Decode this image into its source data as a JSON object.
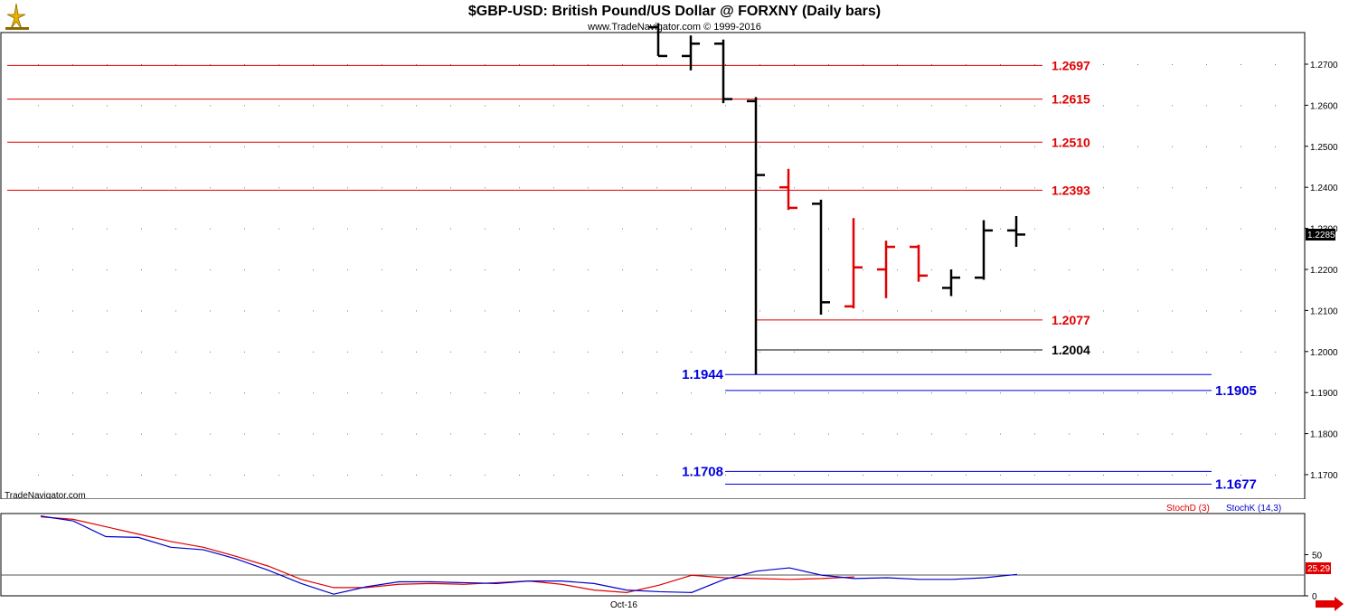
{
  "chart_data": {
    "type": "ohlc",
    "title": "$GBP-USD:  British Pound/US Dollar @ FORXNY  (Daily bars)",
    "subtitle": "www.TradeNavigator.com © 1999-2016",
    "watermark": "TradeNavigator.com",
    "ylim": [
      1.162,
      1.281
    ],
    "y_ticks": [
      "1.2700",
      "1.2600",
      "1.2500",
      "1.2400",
      "1.2300",
      "1.2200",
      "1.2100",
      "1.2000",
      "1.1900",
      "1.1800",
      "1.1700"
    ],
    "last_price": "1.2285",
    "x_tick_label": "Oct-16",
    "bars": [
      {
        "o": 1.279,
        "h": 1.28,
        "l": 1.272,
        "c": 1.272,
        "color": "#000000"
      },
      {
        "o": 1.272,
        "h": 1.277,
        "l": 1.2685,
        "c": 1.275,
        "color": "#000000"
      },
      {
        "o": 1.275,
        "h": 1.276,
        "l": 1.2605,
        "c": 1.2615,
        "color": "#000000"
      },
      {
        "o": 1.261,
        "h": 1.262,
        "l": 1.1944,
        "c": 1.243,
        "color": "#000000"
      },
      {
        "o": 1.24,
        "h": 1.2445,
        "l": 1.2345,
        "c": 1.235,
        "color": "#e00000"
      },
      {
        "o": 1.236,
        "h": 1.237,
        "l": 1.209,
        "c": 1.212,
        "color": "#000000"
      },
      {
        "o": 1.211,
        "h": 1.2325,
        "l": 1.2105,
        "c": 1.2205,
        "color": "#e00000"
      },
      {
        "o": 1.22,
        "h": 1.227,
        "l": 1.213,
        "c": 1.2255,
        "color": "#e00000"
      },
      {
        "o": 1.2255,
        "h": 1.226,
        "l": 1.217,
        "c": 1.2185,
        "color": "#e00000"
      },
      {
        "o": 1.2155,
        "h": 1.22,
        "l": 1.2135,
        "c": 1.218,
        "color": "#000000"
      },
      {
        "o": 1.218,
        "h": 1.232,
        "l": 1.2175,
        "c": 1.2295,
        "color": "#000000"
      },
      {
        "o": 1.2295,
        "h": 1.233,
        "l": 1.2255,
        "c": 1.2285,
        "color": "#000000"
      }
    ],
    "levels": [
      {
        "value": 1.2697,
        "label": "1.2697",
        "color": "#e00000",
        "side": "right"
      },
      {
        "value": 1.2615,
        "label": "1.2615",
        "color": "#e00000",
        "side": "right"
      },
      {
        "value": 1.251,
        "label": "1.2510",
        "color": "#e00000",
        "side": "right"
      },
      {
        "value": 1.2393,
        "label": "1.2393",
        "color": "#e00000",
        "side": "right"
      },
      {
        "value": 1.2077,
        "label": "1.2077",
        "color": "#e00000",
        "side": "right"
      },
      {
        "value": 1.2004,
        "label": "1.2004",
        "color": "#000000",
        "side": "right"
      },
      {
        "value": 1.1944,
        "label": "1.1944",
        "color": "#0000dd",
        "side": "left"
      },
      {
        "value": 1.1905,
        "label": "1.1905",
        "color": "#0000dd",
        "side": "right"
      },
      {
        "value": 1.1708,
        "label": "1.1708",
        "color": "#0000dd",
        "side": "left"
      },
      {
        "value": 1.1677,
        "label": "1.1677",
        "color": "#0000dd",
        "side": "right"
      }
    ],
    "stochastic": {
      "ylim": [
        0,
        100
      ],
      "y_ticks": [
        "50",
        "0"
      ],
      "ref_line": 25.29,
      "last_value": "25.29",
      "series": [
        {
          "name": "StochD (3)",
          "color": "#e00000",
          "values": [
            96,
            93,
            84,
            75,
            66,
            59,
            48,
            36,
            20,
            10,
            10,
            14,
            15,
            14,
            16,
            18,
            14,
            7,
            4,
            13,
            25,
            22,
            21,
            20,
            21,
            23
          ]
        },
        {
          "name": "StochK (14,3)",
          "color": "#0000cc",
          "values": [
            97,
            91,
            72,
            71,
            59,
            56,
            45,
            31,
            15,
            2,
            11,
            17,
            17,
            16,
            15,
            18,
            18,
            15,
            7,
            5,
            4,
            20,
            30,
            34,
            25,
            21,
            22,
            20,
            20,
            22,
            26
          ]
        }
      ]
    }
  }
}
